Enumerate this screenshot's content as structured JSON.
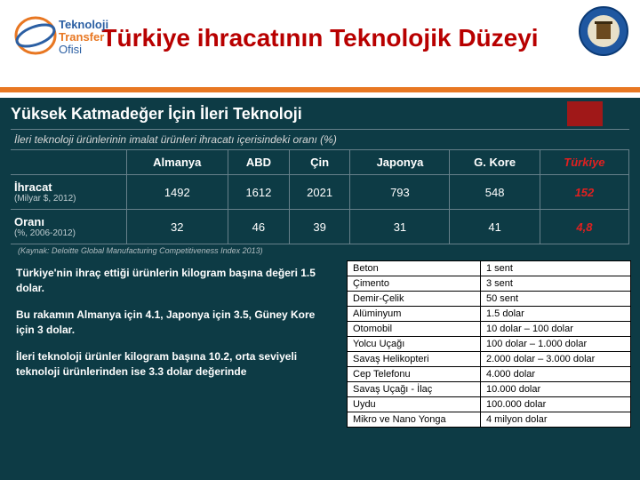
{
  "title": "Türkiye ihracatının Teknolojik Düzeyi",
  "section_title": "Yüksek Katmadeğer İçin İleri Teknoloji",
  "ratio_line": "İleri teknoloji ürünlerinin imalat ürünleri ihracatı içerisindeki oranı (%)",
  "main_table": {
    "headers": [
      "",
      "Almanya",
      "ABD",
      "Çin",
      "Japonya",
      "G. Kore",
      "Türkiye"
    ],
    "rows": [
      {
        "label": "İhracat",
        "sub": "(Milyar $, 2012)",
        "cells": [
          "1492",
          "1612",
          "2021",
          "793",
          "548",
          "152"
        ]
      },
      {
        "label": "Oranı",
        "sub": "(%, 2006-2012)",
        "cells": [
          "32",
          "46",
          "39",
          "31",
          "41",
          "4,8"
        ]
      }
    ]
  },
  "source": "(Kaynak: Deloitte Global Manufacturing Competitiveness Index 2013)",
  "left_paragraphs": [
    "Türkiye'nin ihraç ettiği ürünlerin kilogram başına değeri 1.5 dolar.",
    "Bu rakamın Almanya için 4.1, Japonya için 3.5, Güney Kore için 3 dolar.",
    "İleri teknoloji ürünler kilogram başına 10.2, orta seviyeli teknoloji ürünlerinden ise 3.3 dolar değerinde"
  ],
  "price_table": {
    "rows": [
      [
        "Beton",
        "1 sent"
      ],
      [
        "Çimento",
        "3 sent"
      ],
      [
        "Demir-Çelik",
        "50 sent"
      ],
      [
        "Alüminyum",
        "1.5 dolar"
      ],
      [
        "Otomobil",
        "10 dolar – 100 dolar"
      ],
      [
        "Yolcu Uçağı",
        "100 dolar – 1.000 dolar"
      ],
      [
        "Savaş Helikopteri",
        "2.000 dolar – 3.000 dolar"
      ],
      [
        "Cep Telefonu",
        "4.000 dolar"
      ],
      [
        "Savaş Uçağı - İlaç",
        "10.000 dolar"
      ],
      [
        "Uydu",
        "100.000 dolar"
      ],
      [
        "Mikro ve Nano Yonga",
        "4 milyon dolar"
      ]
    ]
  },
  "colors": {
    "title": "#b80000",
    "orange": "#e87722",
    "dark_bg": "#0d3b45",
    "turkey": "#e02020",
    "accent": "#a01818"
  },
  "logo_left_text": {
    "t1": "Teknoloji",
    "t2": "Transfer",
    "t3": "Ofisi"
  }
}
